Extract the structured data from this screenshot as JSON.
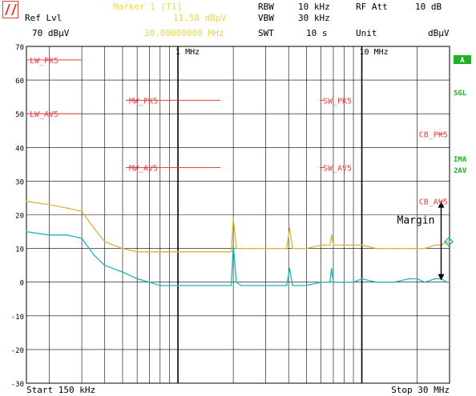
{
  "header": {
    "ref_lvl_label": "Ref Lvl",
    "ref_lvl_value": "70 dBµV",
    "marker_title": "Marker 1 [T1]",
    "marker_level": "11.58 dBµV",
    "marker_freq": "30.00000000 MHz",
    "rbw_label": "RBW",
    "rbw_value": "10 kHz",
    "vbw_label": "VBW",
    "vbw_value": "30 kHz",
    "swt_label": "SWT",
    "swt_value": "10 s",
    "rfatt_label": "RF Att",
    "rfatt_value": "10 dB",
    "unit_label": "Unit",
    "unit_value": "dBµV"
  },
  "side_labels": {
    "a_box": "A",
    "sgl": "SGL",
    "ima": "IMA",
    "two_av": "2AV"
  },
  "colors": {
    "grid": "#000000",
    "limit": "#e8413c",
    "peak_trace": "#d4b63a",
    "avg_trace": "#1fb5b5",
    "marker_text": "#e6d84a",
    "side_label": "#20b020"
  },
  "chart_data": {
    "type": "line",
    "x_scale": "log",
    "xlim_mhz": [
      0.15,
      30
    ],
    "ylim": [
      -30,
      70
    ],
    "y_ticks": [
      70,
      60,
      50,
      40,
      30,
      20,
      10,
      0,
      -10,
      -20,
      -30
    ],
    "y_tick_labels": [
      "70",
      "60",
      "50",
      "40",
      "30",
      "20",
      "10",
      "0",
      "-10",
      "-20",
      "-30"
    ],
    "x_tick_labels": [
      {
        "f": 1,
        "label": "1 MHz"
      },
      {
        "f": 10,
        "label": "10 MHz"
      }
    ],
    "x_start_label": "Start 150 kHz",
    "x_stop_label": "Stop 30 MHz",
    "grid": true,
    "limit_lines": [
      {
        "label": "LW_PK5",
        "f1": 0.15,
        "f2": 0.3,
        "level": 66
      },
      {
        "label": "LW_AV5",
        "f1": 0.15,
        "f2": 0.3,
        "level": 50
      },
      {
        "label": "MW_PK5",
        "f1": 0.52,
        "f2": 1.7,
        "level": 54
      },
      {
        "label": "MW_AV5",
        "f1": 0.52,
        "f2": 1.7,
        "level": 34
      },
      {
        "label": "SW_PK5",
        "f1": 5.9,
        "f2": 6.2,
        "level": 54
      },
      {
        "label": "SW_AV5",
        "f1": 5.9,
        "f2": 6.2,
        "level": 34
      },
      {
        "label": "CB_PK5",
        "f1": 26,
        "f2": 28,
        "level": 44
      },
      {
        "label": "CB_AV5",
        "f1": 26,
        "f2": 28,
        "level": 24
      }
    ],
    "series": [
      {
        "role": "peak",
        "x": [
          0.15,
          0.2,
          0.25,
          0.3,
          0.35,
          0.4,
          0.5,
          0.6,
          0.7,
          0.8,
          1.0,
          1.2,
          1.5,
          1.95,
          2.0,
          2.08,
          2.2,
          2.5,
          3.0,
          3.5,
          3.9,
          4.05,
          4.2,
          5.0,
          6.0,
          6.7,
          6.85,
          7.0,
          8.0,
          9.0,
          10,
          12,
          15,
          18,
          20,
          22,
          25,
          27,
          29,
          30
        ],
        "values": [
          24,
          23,
          22,
          21,
          16,
          12,
          10,
          9,
          9,
          9,
          9,
          9,
          9,
          9,
          19,
          10,
          10,
          10,
          10,
          10,
          10,
          16,
          10,
          10,
          11,
          11,
          14,
          11,
          11,
          11,
          11,
          10,
          10,
          10,
          10,
          10,
          11,
          11,
          12,
          12
        ]
      },
      {
        "role": "average",
        "x": [
          0.15,
          0.2,
          0.25,
          0.3,
          0.35,
          0.4,
          0.5,
          0.6,
          0.7,
          0.8,
          1.0,
          1.2,
          1.5,
          1.95,
          2.0,
          2.08,
          2.2,
          2.5,
          3.0,
          3.5,
          3.9,
          4.05,
          4.2,
          5.0,
          6.0,
          6.7,
          6.85,
          7.0,
          8.0,
          9.0,
          10,
          12,
          15,
          18,
          20,
          22,
          25,
          27,
          29,
          30
        ],
        "values": [
          15,
          14,
          14,
          13,
          8,
          5,
          3,
          1,
          0,
          -1,
          -1,
          -1,
          -1,
          -1,
          11,
          0,
          -1,
          -1,
          -1,
          -1,
          -1,
          4,
          -1,
          -1,
          0,
          0,
          4,
          0,
          0,
          0,
          1,
          0,
          0,
          1,
          1,
          0,
          1,
          1,
          0,
          0
        ]
      }
    ],
    "annotations": [
      {
        "text": "Margin",
        "f": 27,
        "from": 0.5,
        "to": 24
      }
    ]
  }
}
